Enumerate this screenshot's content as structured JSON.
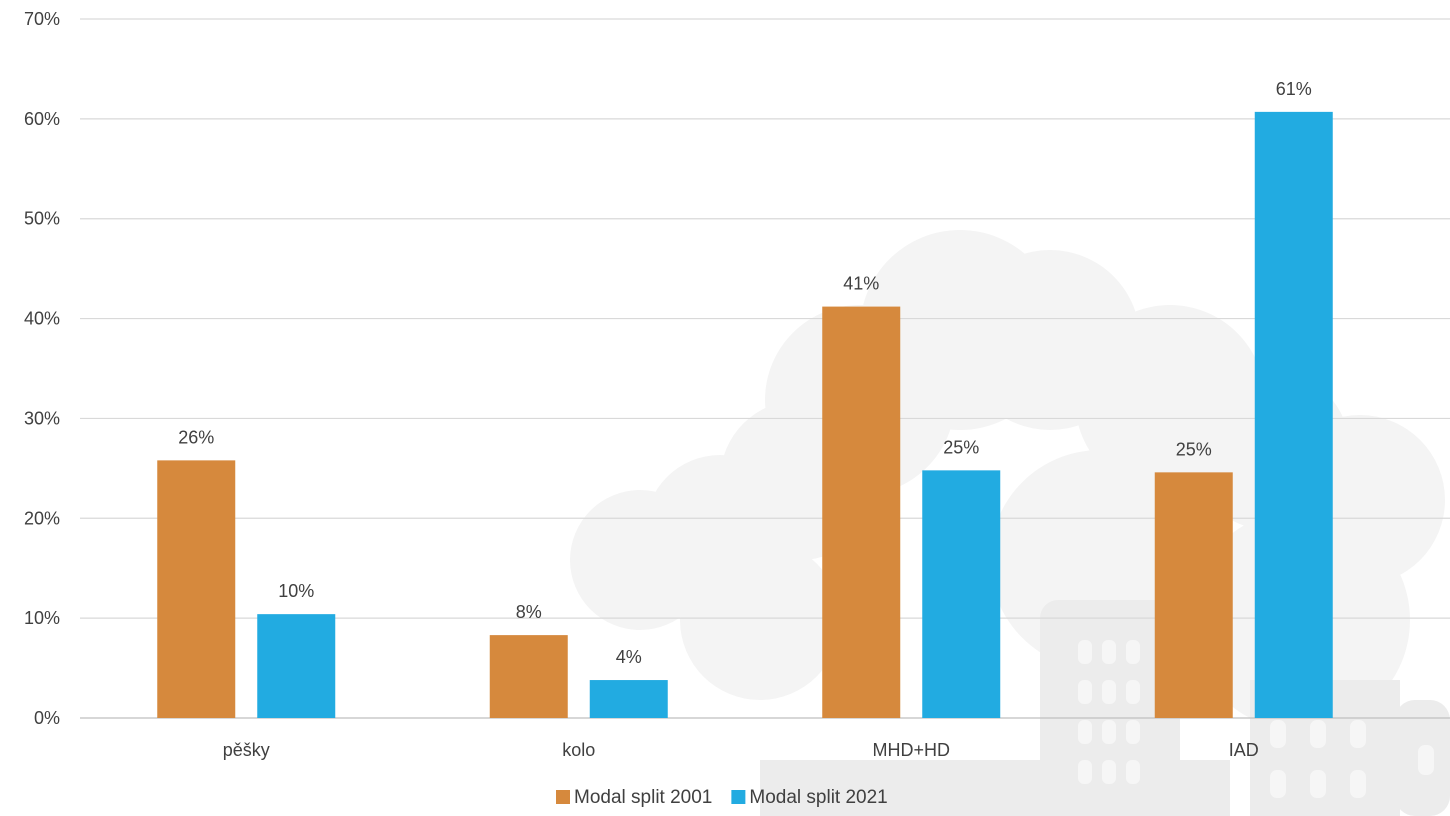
{
  "chart_data": {
    "type": "bar",
    "title": "",
    "xlabel": "",
    "ylabel": "",
    "categories": [
      "pěšky",
      "kolo",
      "MHD+HD",
      "IAD"
    ],
    "series": [
      {
        "name": "Modal split 2001",
        "color": "#D6893D",
        "values": [
          25.8,
          8.3,
          41.2,
          24.6
        ],
        "labels": [
          "26%",
          "8%",
          "41%",
          "25%"
        ]
      },
      {
        "name": "Modal split 2021",
        "color": "#22ABE1",
        "values": [
          10.4,
          3.8,
          24.8,
          60.7
        ],
        "labels": [
          "10%",
          "4%",
          "25%",
          "61%"
        ]
      }
    ],
    "ylim": [
      0,
      70
    ],
    "yticks": [
      0,
      10,
      20,
      30,
      40,
      50,
      60,
      70
    ],
    "ytick_labels": [
      "0%",
      "10%",
      "20%",
      "30%",
      "40%",
      "50%",
      "60%",
      "70%"
    ],
    "grid": true,
    "legend_position": "bottom"
  }
}
